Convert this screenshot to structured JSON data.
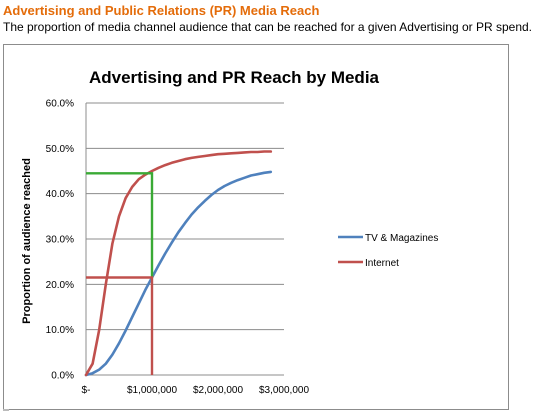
{
  "page": {
    "heading": "Advertising and Public Relations (PR) Media Reach",
    "subheading": "The proportion of media channel audience that can be reached for a given Advertising or PR spend."
  },
  "colors": {
    "heading": "#e46c0a",
    "tv": "#4f81bd",
    "internet": "#c0504d",
    "guide": "#3aaa35",
    "grid": "#8c8c8c"
  },
  "chart_data": {
    "type": "line",
    "title": "Advertising and PR Reach by Media",
    "xlabel": "",
    "ylabel": "Proportion of audience reached",
    "xlim": [
      0,
      3000000
    ],
    "ylim": [
      0,
      0.6
    ],
    "x_ticks": [
      {
        "value": 0,
        "label": "$-"
      },
      {
        "value": 1000000,
        "label": "$1,000,000"
      },
      {
        "value": 2000000,
        "label": "$2,000,000"
      },
      {
        "value": 3000000,
        "label": "$3,000,000"
      }
    ],
    "y_ticks": [
      {
        "value": 0,
        "label": "0.0%"
      },
      {
        "value": 0.1,
        "label": "10.0%"
      },
      {
        "value": 0.2,
        "label": "20.0%"
      },
      {
        "value": 0.3,
        "label": "30.0%"
      },
      {
        "value": 0.4,
        "label": "40.0%"
      },
      {
        "value": 0.5,
        "label": "50.0%"
      },
      {
        "value": 0.6,
        "label": "60.0%"
      }
    ],
    "grid": true,
    "legend": "right",
    "series": [
      {
        "name": "TV & Magazines",
        "color": "#4f81bd",
        "x": [
          0,
          100000,
          200000,
          300000,
          400000,
          500000,
          600000,
          700000,
          800000,
          900000,
          1000000,
          1100000,
          1200000,
          1300000,
          1400000,
          1500000,
          1600000,
          1700000,
          1800000,
          1900000,
          2000000,
          2100000,
          2200000,
          2300000,
          2400000,
          2500000,
          2600000,
          2700000,
          2800000
        ],
        "y": [
          0.0,
          0.004,
          0.012,
          0.025,
          0.045,
          0.07,
          0.098,
          0.128,
          0.158,
          0.188,
          0.215,
          0.242,
          0.268,
          0.292,
          0.315,
          0.335,
          0.354,
          0.37,
          0.384,
          0.397,
          0.408,
          0.417,
          0.424,
          0.43,
          0.435,
          0.44,
          0.443,
          0.446,
          0.448
        ]
      },
      {
        "name": "Internet",
        "color": "#c0504d",
        "x": [
          0,
          100000,
          200000,
          300000,
          400000,
          500000,
          600000,
          700000,
          800000,
          900000,
          1000000,
          1100000,
          1200000,
          1300000,
          1400000,
          1500000,
          1600000,
          1700000,
          1800000,
          1900000,
          2000000,
          2100000,
          2200000,
          2300000,
          2400000,
          2500000,
          2600000,
          2700000,
          2800000
        ],
        "y": [
          0.0,
          0.025,
          0.1,
          0.2,
          0.29,
          0.35,
          0.39,
          0.415,
          0.432,
          0.442,
          0.45,
          0.457,
          0.463,
          0.468,
          0.472,
          0.476,
          0.479,
          0.481,
          0.483,
          0.485,
          0.487,
          0.488,
          0.489,
          0.49,
          0.491,
          0.492,
          0.492,
          0.493,
          0.493
        ]
      }
    ],
    "guide_lines": [
      {
        "color": "#3aaa35",
        "x": [
          0,
          1000000,
          1000000
        ],
        "y": [
          0.445,
          0.445,
          0.215
        ]
      },
      {
        "color": "#c0504d",
        "x": [
          0,
          1000000,
          1000000
        ],
        "y": [
          0.215,
          0.215,
          0
        ]
      }
    ]
  }
}
